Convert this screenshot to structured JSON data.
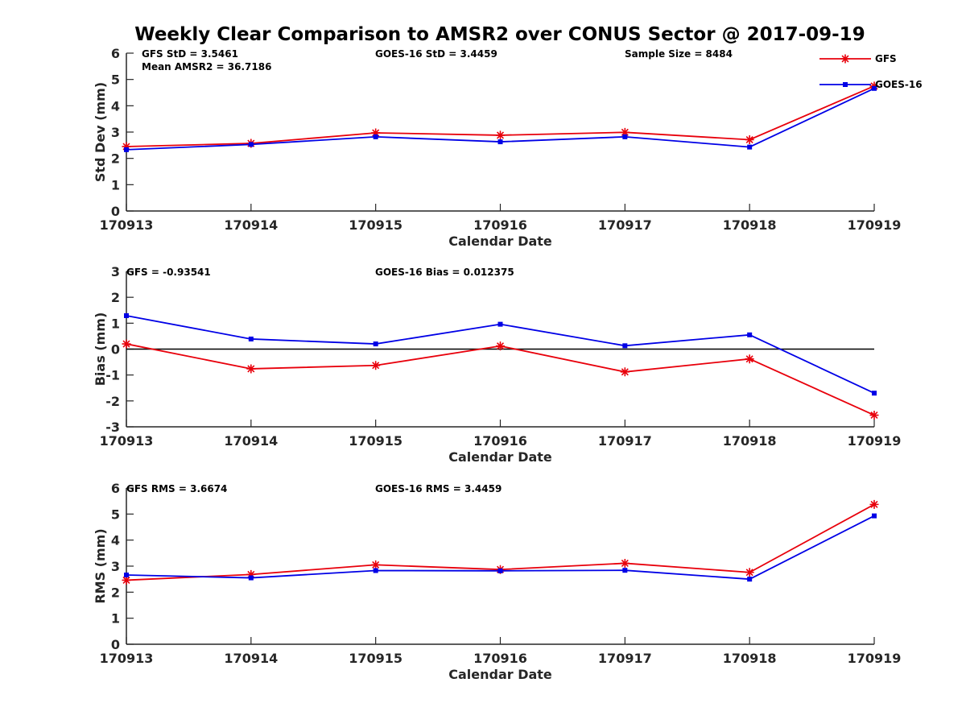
{
  "figure": {
    "title": "Weekly Clear Comparison to AMSR2 over CONUS Sector @ 2017-09-19"
  },
  "colors": {
    "GFS": "#e8000b",
    "GOES-16": "#0000e6",
    "zero_line": "#000000"
  },
  "legend": {
    "placement": "top-right",
    "entries": [
      "GFS",
      "GOES-16"
    ]
  },
  "chart_data": [
    {
      "type": "line",
      "title": "",
      "xlabel": "Calendar Date",
      "ylabel": "Std Dev (mm)",
      "categories": [
        "170913",
        "170914",
        "170915",
        "170916",
        "170917",
        "170918",
        "170919"
      ],
      "ylim": [
        0,
        6
      ],
      "yticks": [
        0,
        1,
        2,
        3,
        4,
        5,
        6
      ],
      "grid": false,
      "series": [
        {
          "name": "GFS",
          "marker": "star",
          "values": [
            2.45,
            2.57,
            2.97,
            2.88,
            2.99,
            2.71,
            4.75
          ]
        },
        {
          "name": "GOES-16",
          "marker": "square",
          "values": [
            2.33,
            2.53,
            2.82,
            2.63,
            2.82,
            2.43,
            4.66
          ]
        }
      ],
      "annotations": [
        "GFS StD = 3.5461",
        "Mean AMSR2 = 36.7186",
        "GOES-16 StD = 3.4459",
        "Sample Size = 8484"
      ]
    },
    {
      "type": "line",
      "title": "",
      "xlabel": "Calendar Date",
      "ylabel": "Bias (mm)",
      "categories": [
        "170913",
        "170914",
        "170915",
        "170916",
        "170917",
        "170918",
        "170919"
      ],
      "ylim": [
        -3,
        3
      ],
      "yticks": [
        -3,
        -2,
        -1,
        0,
        1,
        2,
        3
      ],
      "grid": false,
      "zero_line": true,
      "series": [
        {
          "name": "GFS",
          "marker": "star",
          "values": [
            0.2,
            -0.76,
            -0.63,
            0.12,
            -0.88,
            -0.38,
            -2.55
          ]
        },
        {
          "name": "GOES-16",
          "marker": "square",
          "values": [
            1.29,
            0.39,
            0.2,
            0.96,
            0.13,
            0.55,
            -1.7
          ]
        }
      ],
      "annotations": [
        "GFS = -0.93541",
        "GOES-16 Bias  = 0.012375"
      ]
    },
    {
      "type": "line",
      "title": "",
      "xlabel": "Calendar Date",
      "ylabel": "RMS (mm)",
      "categories": [
        "170913",
        "170914",
        "170915",
        "170916",
        "170917",
        "170918",
        "170919"
      ],
      "ylim": [
        0,
        6
      ],
      "yticks": [
        0,
        1,
        2,
        3,
        4,
        5,
        6
      ],
      "grid": false,
      "series": [
        {
          "name": "GFS",
          "marker": "star",
          "values": [
            2.46,
            2.68,
            3.05,
            2.87,
            3.11,
            2.76,
            5.37
          ]
        },
        {
          "name": "GOES-16",
          "marker": "square",
          "values": [
            2.66,
            2.55,
            2.83,
            2.82,
            2.84,
            2.5,
            4.93
          ]
        }
      ],
      "annotations": [
        "GFS RMS = 3.6674",
        "GOES-16 RMS = 3.4459"
      ]
    }
  ]
}
